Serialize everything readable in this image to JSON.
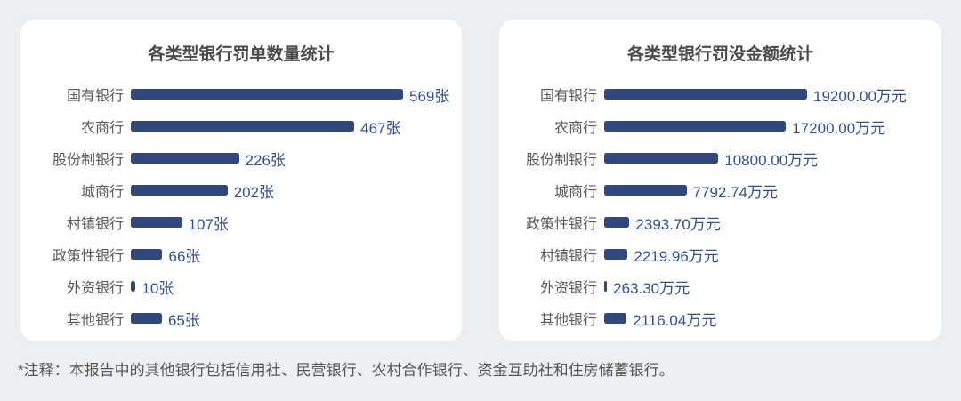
{
  "page": {
    "background_color": "#edf0f2",
    "note": "*注释：本报告中的其他银行包括信用社、民营银行、农村合作银行、资金互助社和住房储蓄银行。"
  },
  "colors": {
    "bar": "#32487a",
    "value_text": "#33508d",
    "category_text": "#595959",
    "title_text": "#4a4a4a",
    "card_background": "#ffffff"
  },
  "chart_data": [
    {
      "type": "bar",
      "orientation": "horizontal",
      "title": "各类型银行罚单数量统计",
      "categories": [
        "国有银行",
        "农商行",
        "股份制银行",
        "城商行",
        "村镇银行",
        "政策性银行",
        "外资银行",
        "其他银行"
      ],
      "values": [
        569,
        467,
        226,
        202,
        107,
        66,
        10,
        65
      ],
      "unit": "张",
      "value_labels": [
        "569张",
        "467张",
        "226张",
        "202张",
        "107张",
        "66张",
        "10张",
        "65张"
      ],
      "xlim": [
        0,
        569
      ],
      "grid": false,
      "legend": null
    },
    {
      "type": "bar",
      "orientation": "horizontal",
      "title": "各类型银行罚没金额统计",
      "categories": [
        "国有银行",
        "农商行",
        "股份制银行",
        "城商行",
        "政策性银行",
        "村镇银行",
        "外资银行",
        "其他银行"
      ],
      "values": [
        19200.0,
        17200.0,
        10800.0,
        7792.74,
        2393.7,
        2219.96,
        263.3,
        2116.04
      ],
      "unit": "万元",
      "value_labels": [
        "19200.00万元",
        "17200.00万元",
        "10800.00万元",
        "7792.74万元",
        "2393.70万元",
        "2219.96万元",
        "263.30万元",
        "2116.04万元"
      ],
      "xlim": [
        0,
        19200
      ],
      "grid": false,
      "legend": null
    }
  ]
}
